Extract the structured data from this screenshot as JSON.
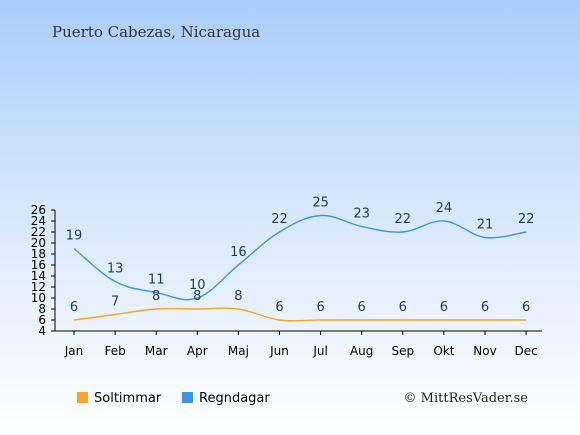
{
  "chart_data": {
    "type": "line",
    "title": "Puerto Cabezas, Nicaragua",
    "categories": [
      "Jan",
      "Feb",
      "Mar",
      "Apr",
      "Maj",
      "Jun",
      "Jul",
      "Aug",
      "Sep",
      "Okt",
      "Nov",
      "Dec"
    ],
    "series": [
      {
        "name": "Soltimmar",
        "color": "#f5a623",
        "values": [
          6,
          7,
          8,
          8,
          8,
          6,
          6,
          6,
          6,
          6,
          6,
          6
        ]
      },
      {
        "name": "Regndagar",
        "color": "#3a95e8",
        "values": [
          19,
          13,
          11,
          10,
          16,
          22,
          25,
          23,
          22,
          24,
          21,
          22
        ]
      }
    ],
    "yticks": [
      4,
      6,
      8,
      10,
      12,
      14,
      16,
      18,
      20,
      22,
      24,
      26
    ],
    "ylim": [
      4,
      26
    ],
    "legend_position": "bottom-left",
    "grid": false
  },
  "copyright": "© MittResVader.se"
}
